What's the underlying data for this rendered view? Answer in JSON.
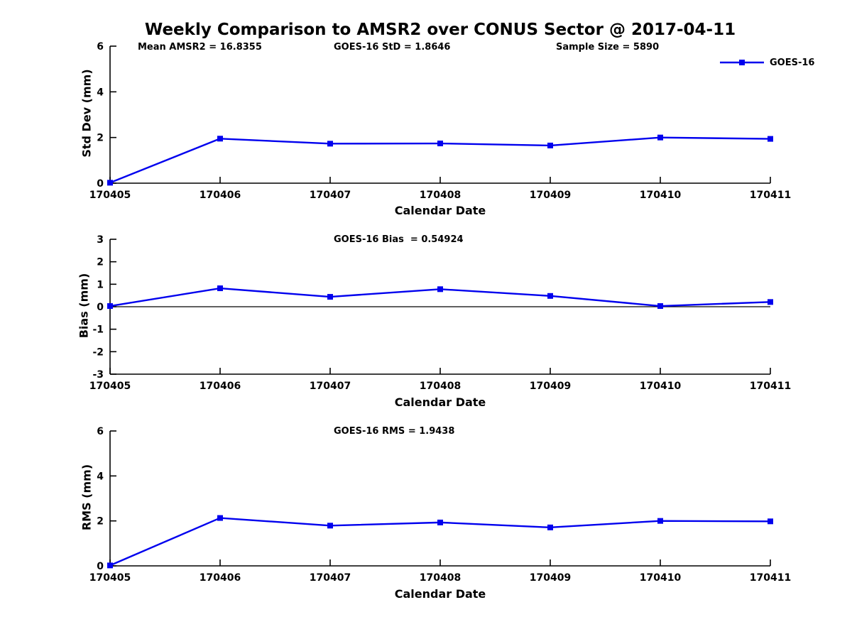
{
  "title": "Weekly Comparison to AMSR2 over CONUS Sector @ 2017-04-11",
  "xlabel": "Calendar Date",
  "legend": {
    "label": "GOES-16",
    "color": "#0000ee"
  },
  "axis_color": "#000000",
  "chart_data": [
    {
      "type": "line",
      "ylabel": "Std Dev (mm)",
      "xlabel": "Calendar Date",
      "categories": [
        "170405",
        "170406",
        "170407",
        "170408",
        "170409",
        "170410",
        "170411"
      ],
      "series": [
        {
          "name": "GOES-16",
          "values": [
            0.02,
            1.95,
            1.73,
            1.74,
            1.65,
            2.0,
            1.94
          ]
        }
      ],
      "ylim": [
        0,
        6
      ],
      "yticks": [
        0,
        2,
        4,
        6
      ],
      "annotations": [
        "Mean AMSR2 = 16.8355",
        "GOES-16 StD = 1.8646",
        "Sample Size = 5890"
      ],
      "zero_line": false,
      "grid": false,
      "legend_position": "top-right"
    },
    {
      "type": "line",
      "ylabel": "Bias (mm)",
      "xlabel": "Calendar Date",
      "categories": [
        "170405",
        "170406",
        "170407",
        "170408",
        "170409",
        "170410",
        "170411"
      ],
      "series": [
        {
          "name": "GOES-16",
          "values": [
            0.03,
            0.82,
            0.44,
            0.78,
            0.48,
            0.03,
            0.21
          ]
        }
      ],
      "ylim": [
        -3,
        3
      ],
      "yticks": [
        -3,
        -2,
        -1,
        0,
        1,
        2,
        3
      ],
      "annotations": [
        "GOES-16 Bias  = 0.54924"
      ],
      "zero_line": true,
      "grid": false,
      "legend_position": "none"
    },
    {
      "type": "line",
      "ylabel": "RMS (mm)",
      "xlabel": "Calendar Date",
      "categories": [
        "170405",
        "170406",
        "170407",
        "170408",
        "170409",
        "170410",
        "170411"
      ],
      "series": [
        {
          "name": "GOES-16",
          "values": [
            0.02,
            2.13,
            1.79,
            1.93,
            1.71,
            2.0,
            1.98
          ]
        }
      ],
      "ylim": [
        0,
        6
      ],
      "yticks": [
        0,
        2,
        4,
        6
      ],
      "annotations": [
        "GOES-16 RMS = 1.9438"
      ],
      "zero_line": false,
      "grid": false,
      "legend_position": "none"
    }
  ]
}
